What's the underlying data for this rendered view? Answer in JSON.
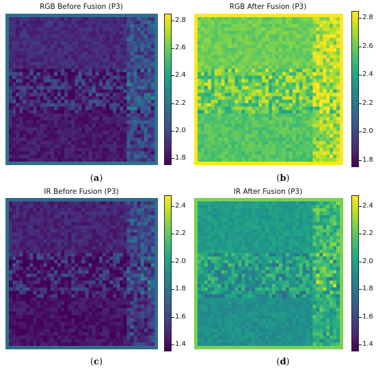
{
  "chart_data": [
    {
      "type": "heatmap",
      "title": "RGB Before Fusion (P3)",
      "caption": "a",
      "colormap": "viridis",
      "vmin": 1.75,
      "vmax": 2.85,
      "colorbar_ticks": [
        "2.8",
        "2.6",
        "2.4",
        "2.2",
        "2.0",
        "1.8"
      ],
      "colorbar_values": [
        2.8,
        2.6,
        2.4,
        2.2,
        2.0,
        1.8
      ],
      "base_level": 0.12,
      "bright_side": "right",
      "border_color": "#3fa0c8"
    },
    {
      "type": "heatmap",
      "title": "RGB After Fusion (P3)",
      "caption": "b",
      "colormap": "viridis",
      "vmin": 1.75,
      "vmax": 2.85,
      "colorbar_ticks": [
        "2.8",
        "2.6",
        "2.4",
        "2.2",
        "2.0",
        "1.8"
      ],
      "colorbar_values": [
        2.8,
        2.6,
        2.4,
        2.2,
        2.0,
        1.8
      ],
      "base_level": 0.78,
      "bright_side": "right",
      "border_color": "#b8de29"
    },
    {
      "type": "heatmap",
      "title": "IR Before Fusion (P3)",
      "caption": "c",
      "colormap": "viridis",
      "vmin": 1.35,
      "vmax": 2.48,
      "colorbar_ticks": [
        "2.4",
        "2.2",
        "2.0",
        "1.8",
        "1.6",
        "1.4"
      ],
      "colorbar_values": [
        2.4,
        2.2,
        2.0,
        1.8,
        1.6,
        1.4
      ],
      "base_level": 0.1,
      "bright_side": "right",
      "border_color": "#3fa0c8"
    },
    {
      "type": "heatmap",
      "title": "IR After Fusion (P3)",
      "caption": "d",
      "colormap": "viridis",
      "vmin": 1.35,
      "vmax": 2.48,
      "colorbar_ticks": [
        "2.4",
        "2.2",
        "2.0",
        "1.8",
        "1.6",
        "1.4"
      ],
      "colorbar_values": [
        2.4,
        2.2,
        2.0,
        1.8,
        1.6,
        1.4
      ],
      "base_level": 0.55,
      "bright_side": "right",
      "border_color": "#d4e21a"
    }
  ]
}
